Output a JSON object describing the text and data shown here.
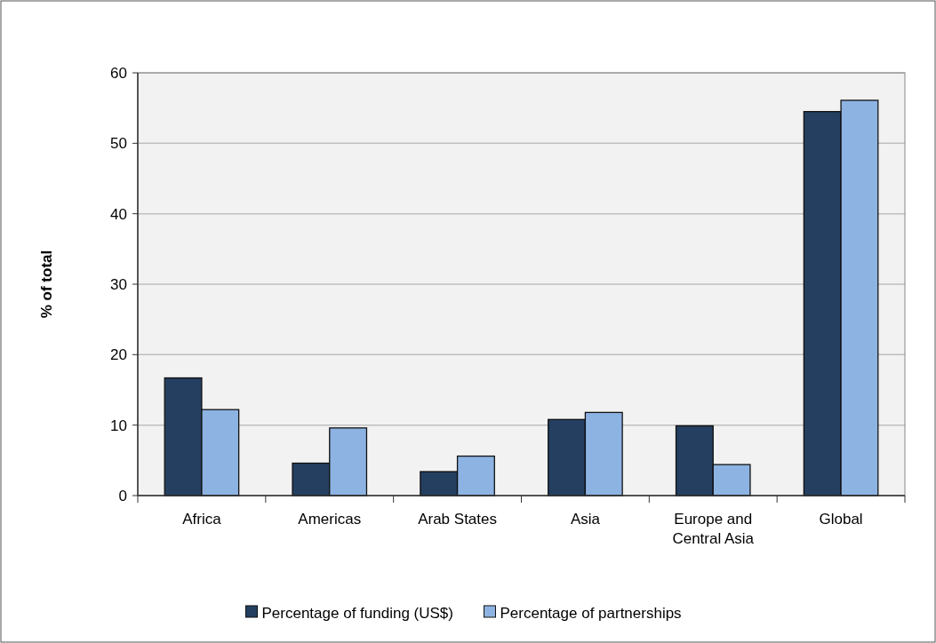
{
  "chart_data": {
    "type": "bar",
    "ylabel": "% of total",
    "categories": [
      "Africa",
      "Americas",
      "Arab States",
      "Asia",
      "Europe and\nCentral Asia",
      "Global"
    ],
    "series": [
      {
        "name": "Percentage of funding (US$)",
        "color": "#243f60",
        "values": [
          16.7,
          4.6,
          3.4,
          10.8,
          9.9,
          54.5
        ]
      },
      {
        "name": "Percentage of partnerships",
        "color": "#8db3e2",
        "values": [
          12.2,
          9.6,
          5.6,
          11.8,
          4.4,
          56.1
        ]
      }
    ],
    "ylim": [
      0,
      60
    ],
    "yticks": [
      0,
      10,
      20,
      30,
      40,
      50,
      60
    ],
    "grid": "y",
    "legend": "bottom"
  }
}
